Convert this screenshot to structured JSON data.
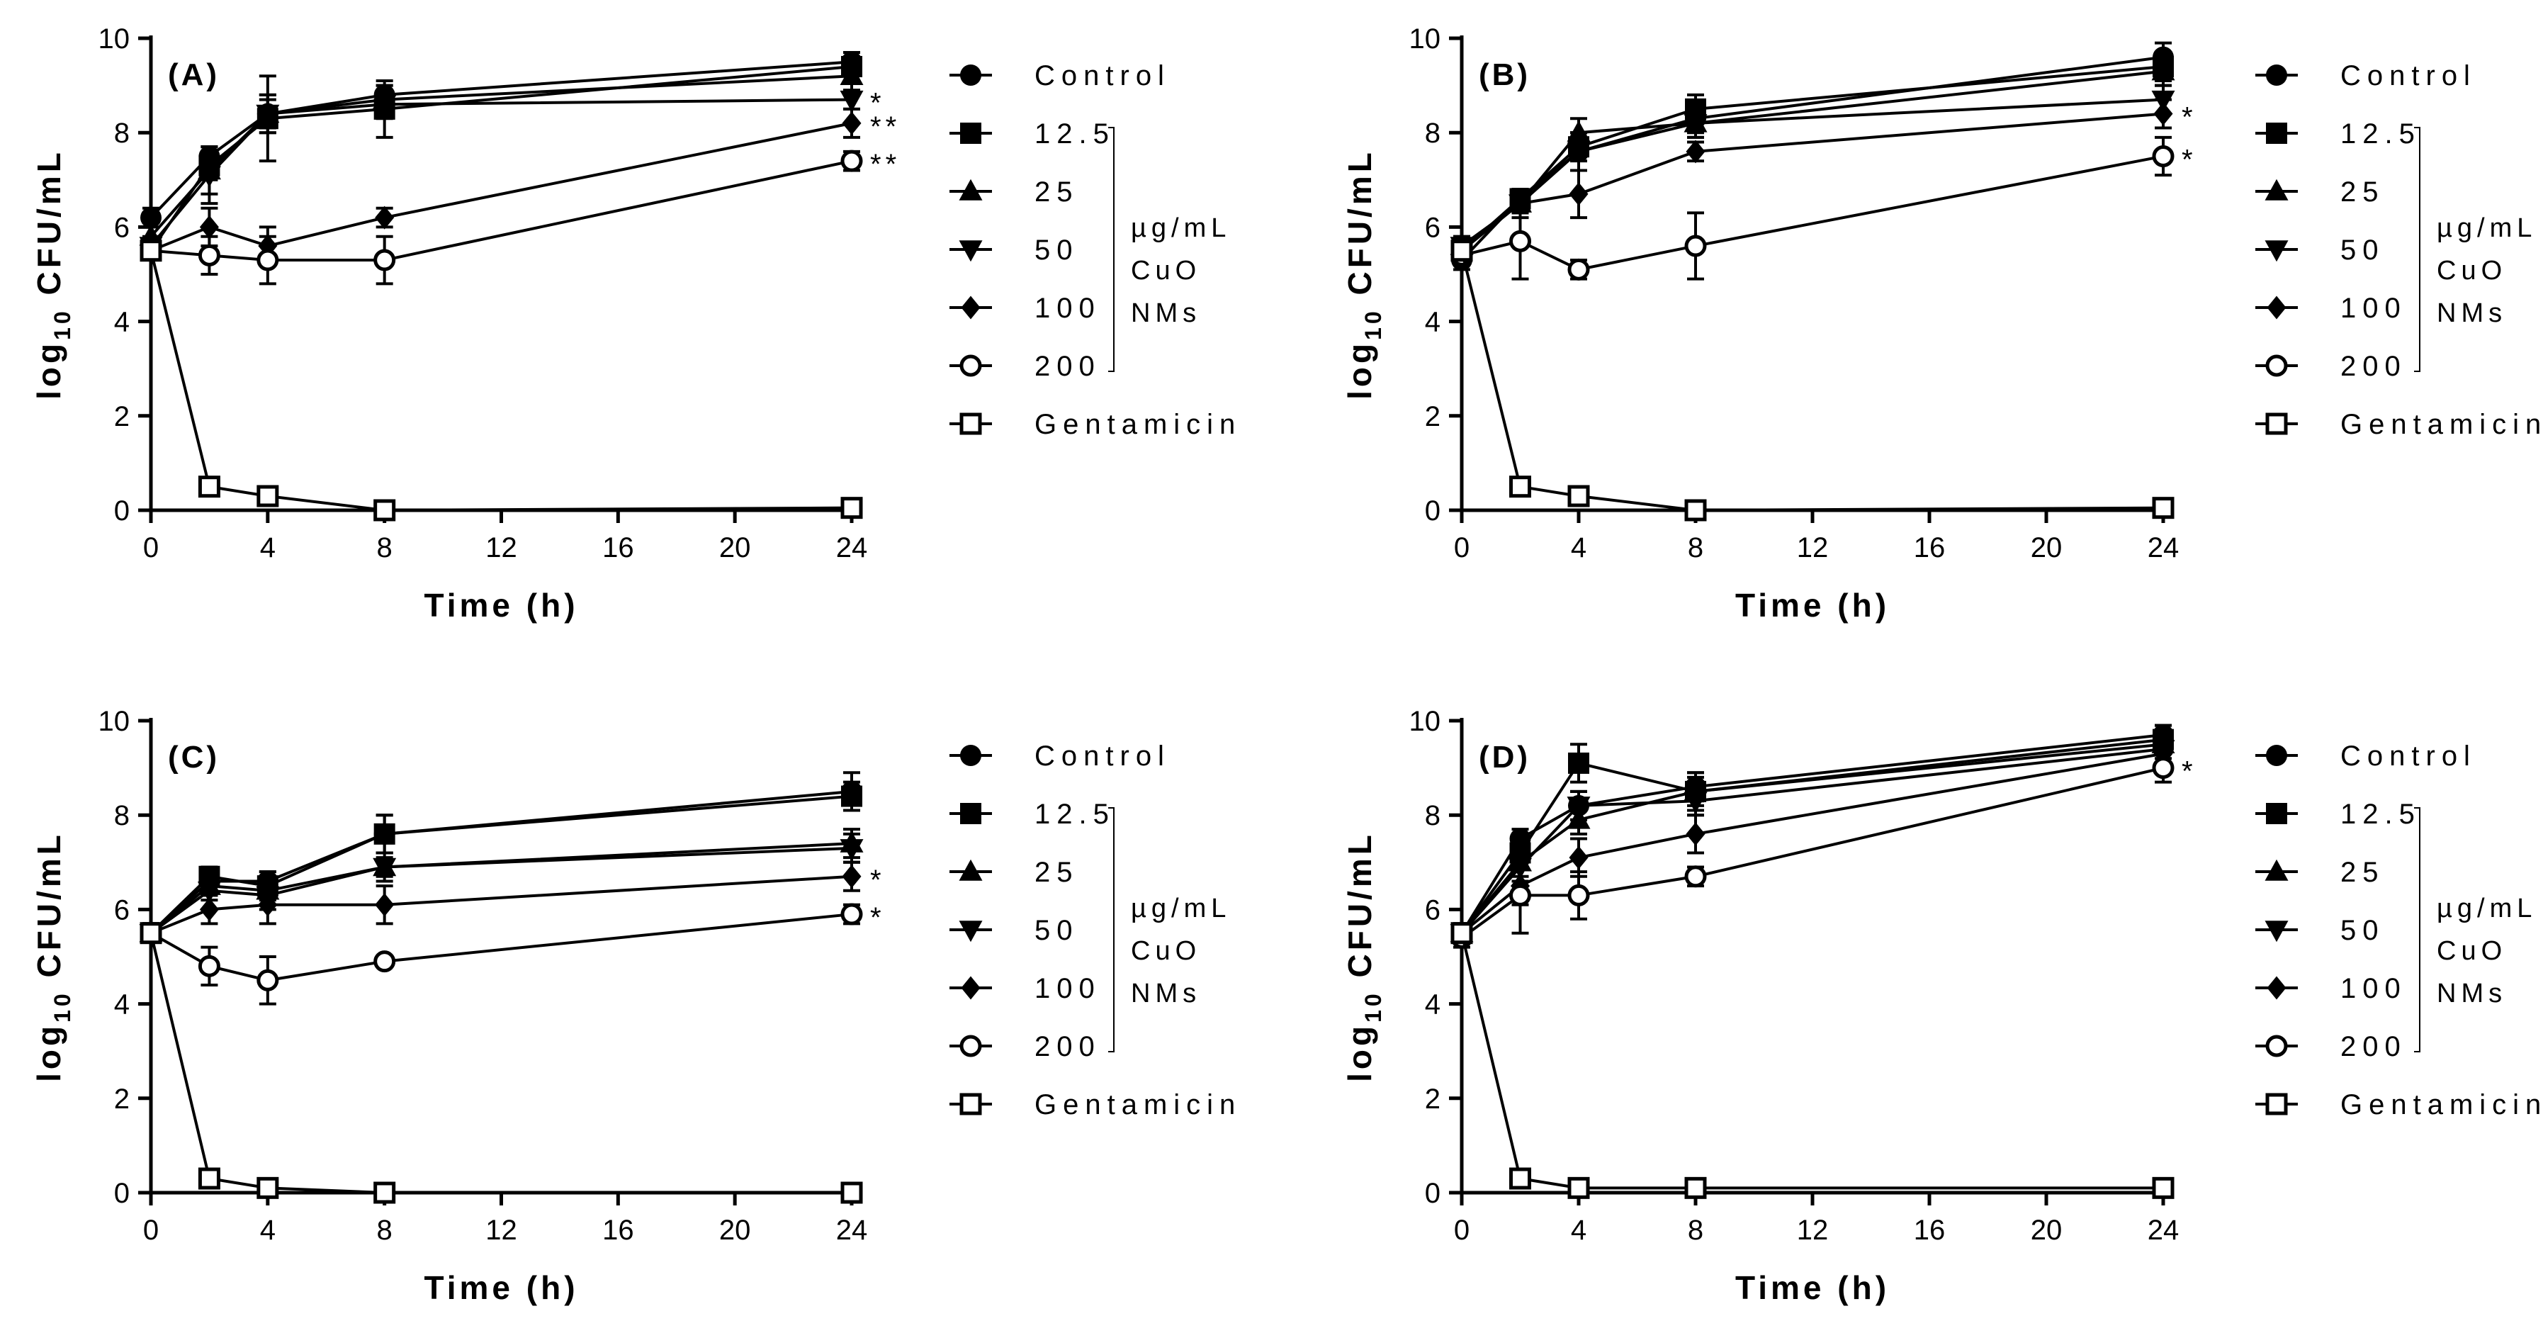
{
  "chart_data": [
    {
      "type": "line",
      "panel_label": "(A)",
      "xlabel": "Time (h)",
      "ylabel_main": "log",
      "ylabel_sub": "10",
      "ylabel_rest": " CFU/mL",
      "xlim": [
        0,
        24
      ],
      "ylim": [
        0,
        10
      ],
      "xticks": [
        0,
        4,
        8,
        12,
        16,
        20,
        24
      ],
      "yticks": [
        0,
        2,
        4,
        6,
        8,
        10
      ],
      "x": [
        0,
        2,
        4,
        8,
        24
      ],
      "series": [
        {
          "name": "Control",
          "marker": "circle-filled",
          "values": [
            6.2,
            7.5,
            8.4,
            8.8,
            9.5
          ],
          "errors": [
            0.2,
            0.2,
            0.3,
            0.2,
            0.2
          ]
        },
        {
          "name": "12.5",
          "marker": "square-filled",
          "values": [
            5.5,
            7.3,
            8.3,
            8.5,
            9.4
          ],
          "errors": [
            0.2,
            0.3,
            0.9,
            0.6,
            0.3
          ]
        },
        {
          "name": "25",
          "marker": "triangle-up-filled",
          "values": [
            5.8,
            7.2,
            8.4,
            8.7,
            9.2
          ],
          "errors": [
            0.2,
            0.5,
            0.4,
            0.3,
            0.3
          ]
        },
        {
          "name": "50",
          "marker": "triangle-down-filled",
          "values": [
            5.6,
            7.1,
            8.4,
            8.6,
            8.7
          ],
          "errors": [
            0.2,
            0.6,
            0.4,
            0.3,
            0.2
          ]
        },
        {
          "name": "100",
          "marker": "diamond-filled",
          "values": [
            5.5,
            6.0,
            5.6,
            6.2,
            8.2
          ],
          "errors": [
            0.2,
            0.4,
            0.4,
            0.2,
            0.3
          ]
        },
        {
          "name": "200",
          "marker": "circle-open",
          "values": [
            5.5,
            5.4,
            5.3,
            5.3,
            7.4
          ],
          "errors": [
            0.2,
            0.4,
            0.5,
            0.5,
            0.2
          ]
        },
        {
          "name": "Gentamicin",
          "marker": "square-open",
          "values": [
            5.5,
            0.5,
            0.3,
            0.0,
            0.05
          ],
          "errors": [
            0,
            0.1,
            0.1,
            0,
            0
          ]
        }
      ],
      "annotations": [
        {
          "series": "50",
          "text": "*"
        },
        {
          "series": "100",
          "text": "**"
        },
        {
          "series": "200",
          "text": "**"
        }
      ]
    },
    {
      "type": "line",
      "panel_label": "(B)",
      "xlabel": "Time (h)",
      "ylabel_main": "log",
      "ylabel_sub": "10",
      "ylabel_rest": " CFU/mL",
      "xlim": [
        0,
        24
      ],
      "ylim": [
        0,
        10
      ],
      "xticks": [
        0,
        4,
        8,
        12,
        16,
        20,
        24
      ],
      "yticks": [
        0,
        2,
        4,
        6,
        8,
        10
      ],
      "x": [
        0,
        2,
        4,
        8,
        24
      ],
      "series": [
        {
          "name": "Control",
          "marker": "circle-filled",
          "values": [
            5.3,
            6.6,
            7.6,
            8.3,
            9.6
          ],
          "errors": [
            0.2,
            0.2,
            0.4,
            0.3,
            0.3
          ]
        },
        {
          "name": "12.5",
          "marker": "square-filled",
          "values": [
            5.5,
            6.6,
            7.7,
            8.5,
            9.4
          ],
          "errors": [
            0.2,
            0.2,
            0.3,
            0.3,
            0.3
          ]
        },
        {
          "name": "25",
          "marker": "triangle-up-filled",
          "values": [
            5.6,
            6.5,
            8.0,
            8.2,
            9.3
          ],
          "errors": [
            0.2,
            0.2,
            0.3,
            0.3,
            0.3
          ]
        },
        {
          "name": "50",
          "marker": "triangle-down-filled",
          "values": [
            5.6,
            6.5,
            7.6,
            8.2,
            8.7
          ],
          "errors": [
            0.2,
            0.2,
            0.4,
            0.3,
            0.3
          ]
        },
        {
          "name": "100",
          "marker": "diamond-filled",
          "values": [
            5.5,
            6.5,
            6.7,
            7.6,
            8.4
          ],
          "errors": [
            0.2,
            0.3,
            0.5,
            0.2,
            0.3
          ]
        },
        {
          "name": "200",
          "marker": "circle-open",
          "values": [
            5.4,
            5.7,
            5.1,
            5.6,
            7.5
          ],
          "errors": [
            0.2,
            0.8,
            0.2,
            0.7,
            0.4
          ]
        },
        {
          "name": "Gentamicin",
          "marker": "square-open",
          "values": [
            5.5,
            0.5,
            0.3,
            0.0,
            0.05
          ],
          "errors": [
            0,
            0.1,
            0.1,
            0,
            0
          ]
        }
      ],
      "annotations": [
        {
          "series": "100",
          "text": "*"
        },
        {
          "series": "200",
          "text": "*"
        }
      ]
    },
    {
      "type": "line",
      "panel_label": "(C)",
      "xlabel": "Time (h)",
      "ylabel_main": "log",
      "ylabel_sub": "10",
      "ylabel_rest": " CFU/mL",
      "xlim": [
        0,
        24
      ],
      "ylim": [
        0,
        10
      ],
      "xticks": [
        0,
        4,
        8,
        12,
        16,
        20,
        24
      ],
      "yticks": [
        0,
        2,
        4,
        6,
        8,
        10
      ],
      "x": [
        0,
        2,
        4,
        8,
        24
      ],
      "series": [
        {
          "name": "Control",
          "marker": "circle-filled",
          "values": [
            5.5,
            6.6,
            6.6,
            7.6,
            8.5
          ],
          "errors": [
            0.2,
            0.2,
            0.2,
            0.4,
            0.4
          ]
        },
        {
          "name": "12.5",
          "marker": "square-filled",
          "values": [
            5.5,
            6.7,
            6.5,
            7.6,
            8.4
          ],
          "errors": [
            0.2,
            0.2,
            0.3,
            0.4,
            0.3
          ]
        },
        {
          "name": "25",
          "marker": "triangle-up-filled",
          "values": [
            5.5,
            6.5,
            6.4,
            6.9,
            7.4
          ],
          "errors": [
            0.2,
            0.2,
            0.3,
            0.2,
            0.3
          ]
        },
        {
          "name": "50",
          "marker": "triangle-down-filled",
          "values": [
            5.5,
            6.4,
            6.3,
            6.9,
            7.3
          ],
          "errors": [
            0.2,
            0.2,
            0.3,
            0.3,
            0.3
          ]
        },
        {
          "name": "100",
          "marker": "diamond-filled",
          "values": [
            5.5,
            6.0,
            6.1,
            6.1,
            6.7
          ],
          "errors": [
            0.2,
            0.3,
            0.4,
            0.4,
            0.3
          ]
        },
        {
          "name": "200",
          "marker": "circle-open",
          "values": [
            5.5,
            4.8,
            4.5,
            4.9,
            5.9
          ],
          "errors": [
            0.2,
            0.4,
            0.5,
            0.1,
            0.2
          ]
        },
        {
          "name": "Gentamicin",
          "marker": "square-open",
          "values": [
            5.5,
            0.3,
            0.1,
            0.0,
            0.0
          ],
          "errors": [
            0,
            0.1,
            0.05,
            0,
            0
          ]
        }
      ],
      "annotations": [
        {
          "series": "100",
          "text": "*"
        },
        {
          "series": "200",
          "text": "*"
        }
      ]
    },
    {
      "type": "line",
      "panel_label": "(D)",
      "xlabel": "Time (h)",
      "ylabel_main": "log",
      "ylabel_sub": "10",
      "ylabel_rest": " CFU/mL",
      "xlim": [
        0,
        24
      ],
      "ylim": [
        0,
        10
      ],
      "xticks": [
        0,
        4,
        8,
        12,
        16,
        20,
        24
      ],
      "yticks": [
        0,
        2,
        4,
        6,
        8,
        10
      ],
      "x": [
        0,
        2,
        4,
        8,
        24
      ],
      "series": [
        {
          "name": "Control",
          "marker": "circle-filled",
          "values": [
            5.5,
            7.5,
            8.2,
            8.6,
            9.7
          ],
          "errors": [
            0.2,
            0.2,
            0.3,
            0.3,
            0.2
          ]
        },
        {
          "name": "12.5",
          "marker": "square-filled",
          "values": [
            5.5,
            7.2,
            9.1,
            8.5,
            9.6
          ],
          "errors": [
            0.2,
            0.3,
            0.4,
            0.4,
            0.3
          ]
        },
        {
          "name": "25",
          "marker": "triangle-up-filled",
          "values": [
            5.5,
            7.0,
            7.9,
            8.5,
            9.5
          ],
          "errors": [
            0.2,
            0.3,
            0.3,
            0.3,
            0.3
          ]
        },
        {
          "name": "50",
          "marker": "triangle-down-filled",
          "values": [
            5.5,
            6.9,
            8.2,
            8.3,
            9.4
          ],
          "errors": [
            0.2,
            0.3,
            0.3,
            0.3,
            0.3
          ]
        },
        {
          "name": "100",
          "marker": "diamond-filled",
          "values": [
            5.5,
            6.5,
            7.1,
            7.6,
            9.3
          ],
          "errors": [
            0.2,
            0.4,
            0.4,
            0.4,
            0.3
          ]
        },
        {
          "name": "200",
          "marker": "circle-open",
          "values": [
            5.4,
            6.3,
            6.3,
            6.7,
            9.0
          ],
          "errors": [
            0.2,
            0.8,
            0.5,
            0.2,
            0.3
          ]
        },
        {
          "name": "Gentamicin",
          "marker": "square-open",
          "values": [
            5.5,
            0.3,
            0.1,
            0.1,
            0.1
          ],
          "errors": [
            0,
            0.1,
            0.05,
            0.05,
            0.05
          ]
        }
      ],
      "annotations": [
        {
          "series": "200",
          "text": "*"
        }
      ]
    }
  ],
  "legend": {
    "entries": [
      "Control",
      "12.5",
      "25",
      "50",
      "100",
      "200",
      "Gentamicin"
    ],
    "markers": [
      "circle-filled",
      "square-filled",
      "triangle-up-filled",
      "triangle-down-filled",
      "diamond-filled",
      "circle-open",
      "square-open"
    ],
    "bracket_label": [
      "µg/mL",
      "CuO",
      "NMs"
    ]
  },
  "colors": {
    "ink": "#000000",
    "background": "#ffffff"
  }
}
